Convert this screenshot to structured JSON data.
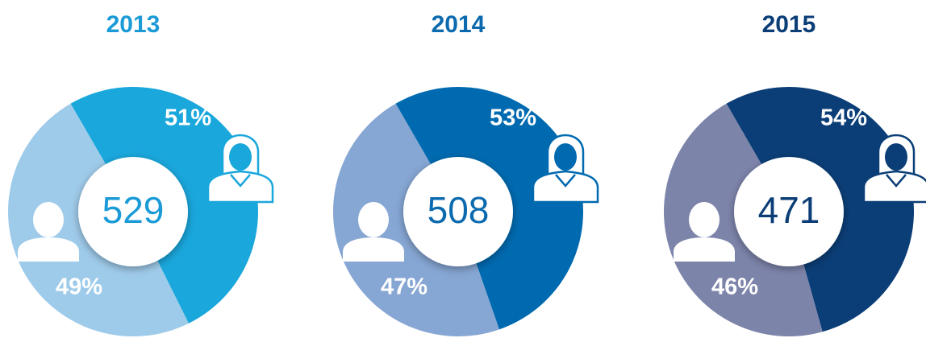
{
  "chart_data": [
    {
      "type": "pie",
      "title": "2013",
      "total": 529,
      "color": "#1a9bd7",
      "values": [
        51,
        49
      ],
      "value_labels": [
        "51%",
        "49%"
      ],
      "colors": [
        "#1aa7dc",
        "#9fcbea"
      ]
    },
    {
      "type": "pie",
      "title": "2014",
      "total": 508,
      "color": "#0c6aae",
      "values": [
        53,
        47
      ],
      "value_labels": [
        "53%",
        "47%"
      ],
      "colors": [
        "#006ab0",
        "#86a6d3"
      ]
    },
    {
      "type": "pie",
      "title": "2015",
      "total": 471,
      "color": "#0b3e77",
      "values": [
        54,
        46
      ],
      "value_labels": [
        "54%",
        "46%"
      ],
      "colors": [
        "#0b3e77",
        "#7d84aa"
      ]
    }
  ]
}
